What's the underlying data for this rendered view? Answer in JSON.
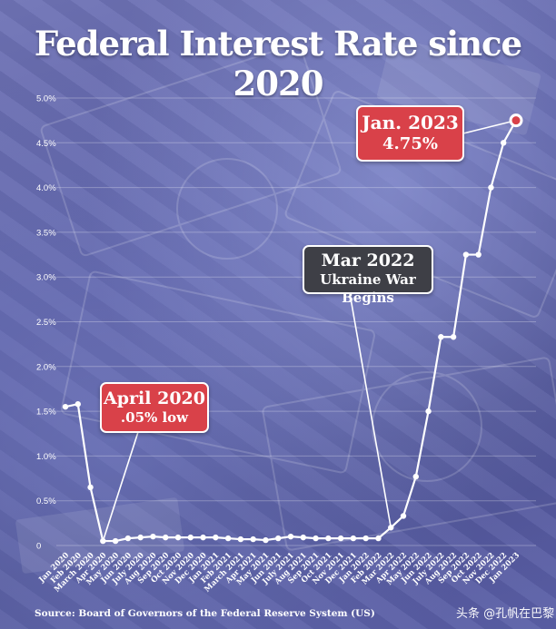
{
  "title": "Federal Interest Rate since 2020",
  "source": "Source: Board of Governors of the Federal Reserve System (US)",
  "watermark": "头条 @孔帆在巴黎",
  "colors": {
    "line": "#ffffff",
    "callout_red": "#d94149",
    "callout_dark": "#3e3f46",
    "highlight_point": "#d94149"
  },
  "annotations": {
    "april": {
      "line1": "April 2020",
      "line2": ".05% low"
    },
    "mar": {
      "line1": "Mar 2022",
      "line2": "Ukraine War Begins"
    },
    "jan": {
      "line1": "Jan. 2023",
      "line2": "4.75%"
    }
  },
  "chart_data": {
    "type": "line",
    "title": "Federal Interest Rate since 2020",
    "xlabel": "",
    "ylabel": "",
    "ylim": [
      0,
      5
    ],
    "yticks": [
      0,
      0.5,
      1,
      1.5,
      2,
      2.5,
      3,
      3.5,
      4,
      4.5,
      5
    ],
    "ytick_labels": [
      "0",
      "0.5%",
      "1.0%",
      "1.5%",
      "2.0%",
      "2.5%",
      "3.0%",
      "3.5%",
      "4.0%",
      "4.5%",
      "5.0%"
    ],
    "grid": true,
    "x_tick_labels": [
      "Jan 2020",
      "Feb 2020",
      "March 2020",
      "Apr 2020",
      "May 2020",
      "Jun 2020",
      "July 2020",
      "Aug 2020",
      "Sep 2020",
      "Oct 2020",
      "Nov 2020",
      "Dec 2020",
      "Jan 2021",
      "Feb 2021",
      "March 2021",
      "Apr 2021",
      "May 2021",
      "Jun 2021",
      "July 2021",
      "Aug 2021",
      "Sep 2021",
      "Oct 2021",
      "Nov 2021",
      "Dec 2021",
      "Jan 2022",
      "Feb 2022",
      "Mar 2022",
      "Apr 2022",
      "May 2022",
      "Jun 2022",
      "July 2022",
      "Aug 2022",
      "Sep 2022",
      "Oct 2022",
      "Nov 2022",
      "Dec 2022",
      "Jan 2023"
    ],
    "points": [
      {
        "x": "Jan 2020",
        "y": 1.55
      },
      {
        "x": "Feb 2020",
        "y": 1.58
      },
      {
        "x": "Mar 2020",
        "y": 0.65
      },
      {
        "x": "Apr 2020",
        "y": 0.05
      },
      {
        "x": "May 2020",
        "y": 0.05
      },
      {
        "x": "Jun 2020",
        "y": 0.08
      },
      {
        "x": "Jul 2020",
        "y": 0.09
      },
      {
        "x": "Aug 2020",
        "y": 0.1
      },
      {
        "x": "Sep 2020",
        "y": 0.09
      },
      {
        "x": "Oct 2020",
        "y": 0.09
      },
      {
        "x": "Nov 2020",
        "y": 0.09
      },
      {
        "x": "Dec 2020",
        "y": 0.09
      },
      {
        "x": "Jan 2021",
        "y": 0.09
      },
      {
        "x": "Feb 2021",
        "y": 0.08
      },
      {
        "x": "Mar 2021",
        "y": 0.07
      },
      {
        "x": "Apr 2021",
        "y": 0.07
      },
      {
        "x": "May 2021",
        "y": 0.06
      },
      {
        "x": "Jun 2021",
        "y": 0.08
      },
      {
        "x": "Jul 2021",
        "y": 0.1
      },
      {
        "x": "Aug 2021",
        "y": 0.09
      },
      {
        "x": "Sep 2021",
        "y": 0.08
      },
      {
        "x": "Oct 2021",
        "y": 0.08
      },
      {
        "x": "Nov 2021",
        "y": 0.08
      },
      {
        "x": "Dec 2021",
        "y": 0.08
      },
      {
        "x": "Jan 2022",
        "y": 0.08
      },
      {
        "x": "Feb 2022",
        "y": 0.08
      },
      {
        "x": "Mar 2022",
        "y": 0.2
      },
      {
        "x": "Apr 2022",
        "y": 0.33
      },
      {
        "x": "May 2022",
        "y": 0.77
      },
      {
        "x": "Jun 2022",
        "y": 1.5
      },
      {
        "x": "Jul 2022",
        "y": 2.33
      },
      {
        "x": "Aug 2022",
        "y": 2.33
      },
      {
        "x": "Sep 2022",
        "y": 3.25
      },
      {
        "x": "Oct 2022",
        "y": 3.25
      },
      {
        "x": "Nov 2022",
        "y": 4.0
      },
      {
        "x": "Dec 2022",
        "y": 4.5
      },
      {
        "x": "Jan 2023",
        "y": 4.75
      }
    ]
  }
}
